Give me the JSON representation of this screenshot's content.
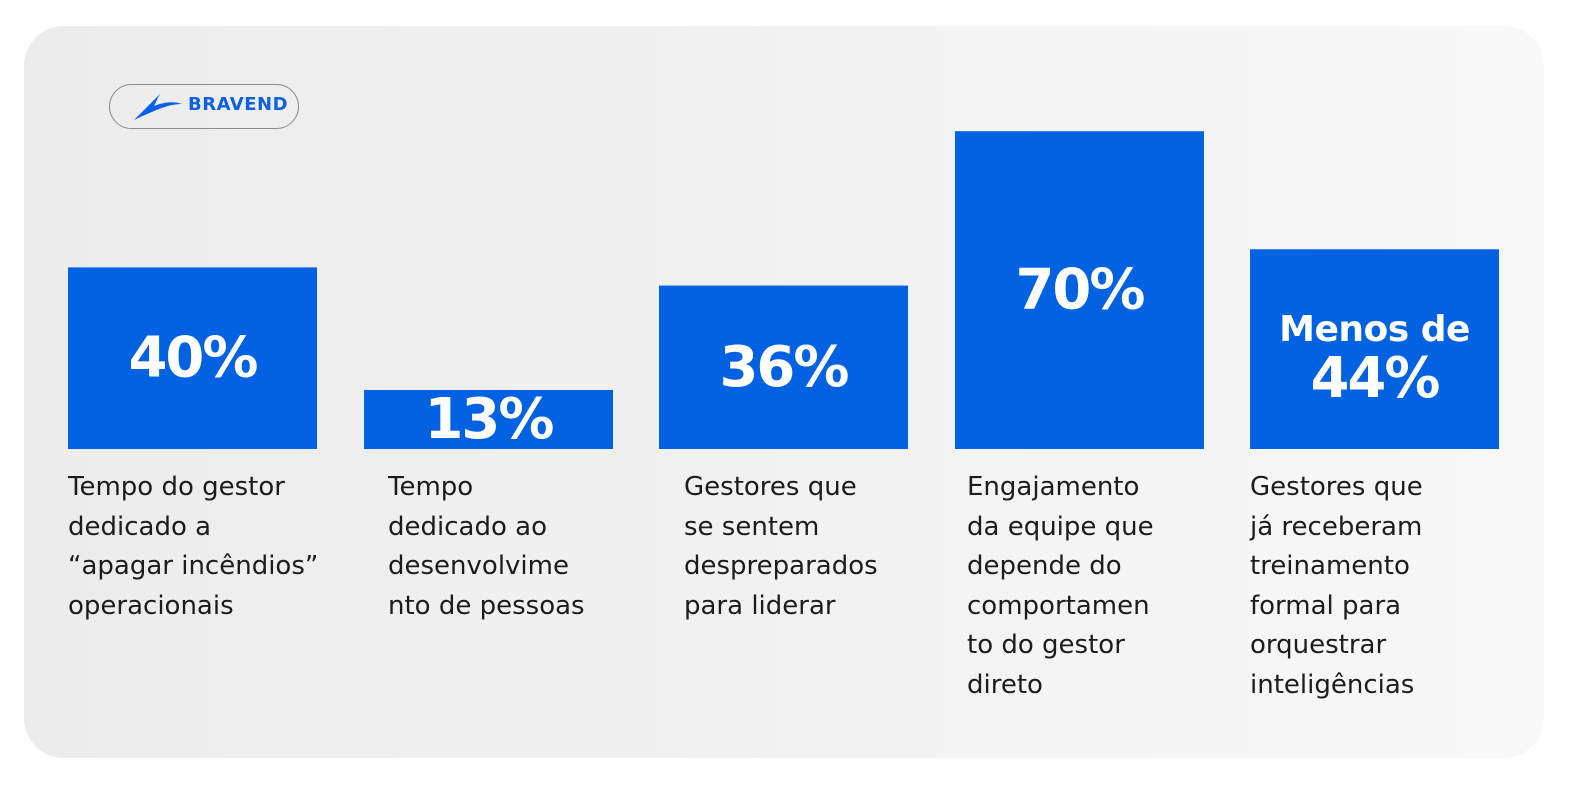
{
  "brand": {
    "name": "Bravend",
    "logo_text": "BRAVEND",
    "color": "#0a62e2"
  },
  "chart_data": {
    "type": "bar",
    "bar_color": "#0062e0",
    "label_color": "#ffffff",
    "grid": true,
    "ylim": [
      0,
      100
    ],
    "bars": [
      {
        "value": 40,
        "label": "40%",
        "caption": "Tempo do gestor\ndedicado a\n“apagar incêndios”\noperacionais"
      },
      {
        "value": 13,
        "label": "13%",
        "caption": "Tempo\ndedicado ao\ndesenvolvime\nnto de pessoas"
      },
      {
        "value": 36,
        "label": "36%",
        "caption": "Gestores que\nse sentem\ndespreparados\npara liderar"
      },
      {
        "value": 70,
        "label": "70%",
        "caption": "Engajamento\nda equipe que\ndepende do\ncomportamen\nto do gestor\ndireto"
      },
      {
        "value": 44,
        "prefix": "Menos de",
        "label": "44%",
        "caption": "Gestores que\njá receberam\ntreinamento\nformal para\norquestrar\ninteligências"
      }
    ]
  }
}
